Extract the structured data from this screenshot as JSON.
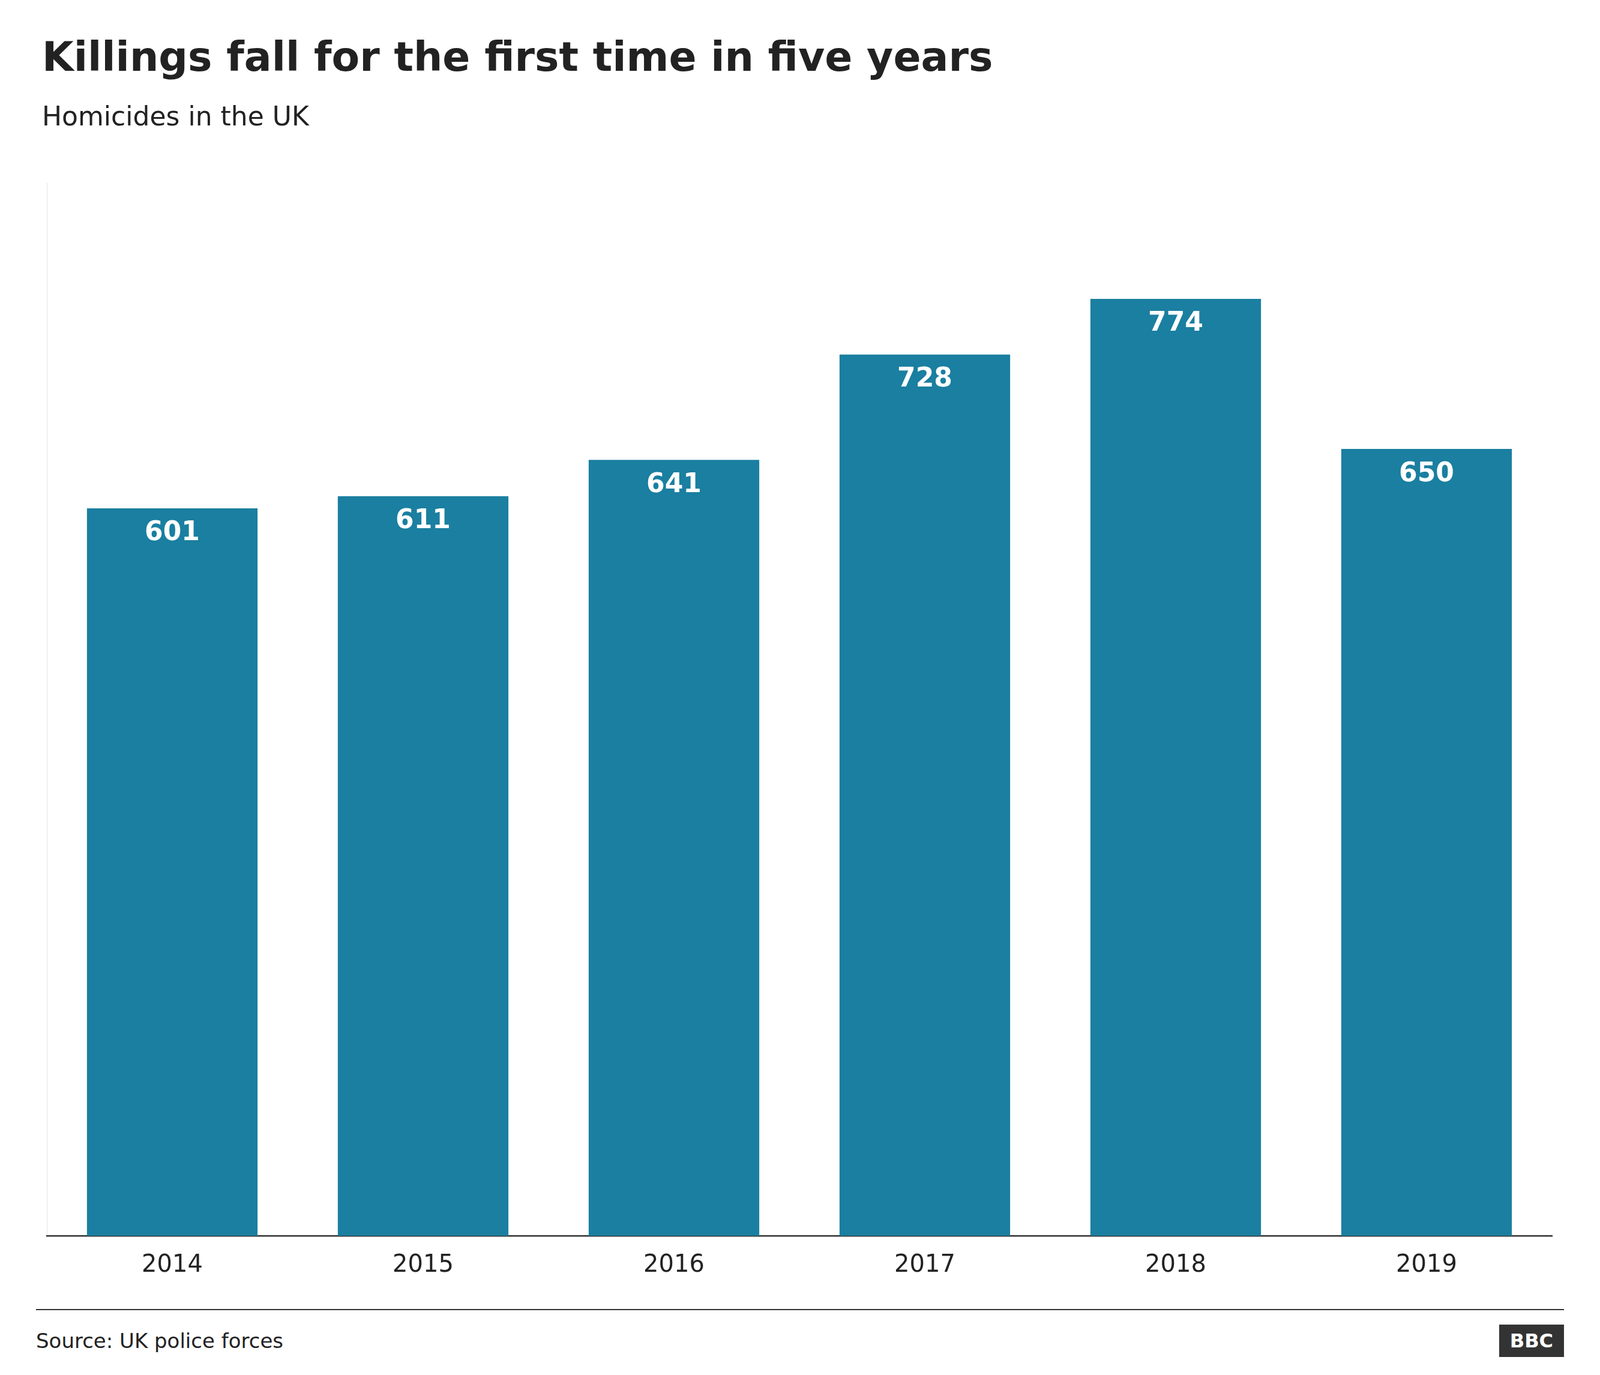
{
  "chart_data": {
    "type": "bar",
    "title": "Killings fall for the first time in five years",
    "subtitle": "Homicides in the UK",
    "categories": [
      "2014",
      "2015",
      "2016",
      "2017",
      "2018",
      "2019"
    ],
    "values": [
      601,
      611,
      641,
      728,
      774,
      650
    ],
    "color": "#1a7fa0",
    "ylim": [
      0,
      870
    ],
    "grid": false,
    "data_labels": true,
    "tick_labels": "x",
    "annotations": [
      "Source: UK police forces",
      "BBC"
    ]
  }
}
